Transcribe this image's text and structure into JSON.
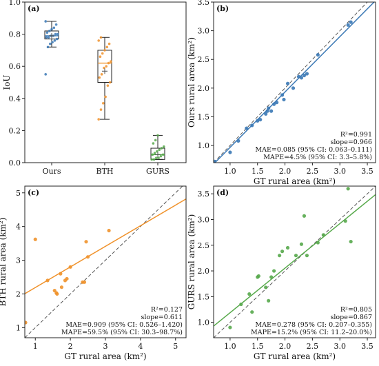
{
  "chart_data": [
    {
      "panel_label": "(a)",
      "type": "box",
      "ylabel": "IoU",
      "ylim": [
        0,
        1.0
      ],
      "yticks": [
        "0.0",
        "0.2",
        "0.4",
        "0.6",
        "0.8",
        "1.0"
      ],
      "categories": [
        "Ours",
        "BTH",
        "GURS"
      ],
      "colors": [
        "#3a78b5",
        "#f0922b",
        "#57a94b"
      ],
      "boxes": [
        {
          "category": "Ours",
          "whisker_low": 0.72,
          "q1": 0.77,
          "median": 0.79,
          "mean": 0.79,
          "q3": 0.82,
          "whisker_high": 0.88,
          "points": [
            0.55,
            0.72,
            0.74,
            0.75,
            0.76,
            0.77,
            0.78,
            0.78,
            0.79,
            0.79,
            0.8,
            0.8,
            0.81,
            0.82,
            0.83,
            0.84,
            0.86,
            0.88
          ]
        },
        {
          "category": "BTH",
          "whisker_low": 0.27,
          "q1": 0.5,
          "median": 0.62,
          "mean": 0.57,
          "q3": 0.7,
          "whisker_high": 0.78,
          "points": [
            0.27,
            0.33,
            0.37,
            0.41,
            0.48,
            0.5,
            0.53,
            0.55,
            0.59,
            0.6,
            0.62,
            0.63,
            0.66,
            0.68,
            0.7,
            0.72,
            0.74,
            0.76,
            0.78
          ]
        },
        {
          "category": "GURS",
          "whisker_low": 0.02,
          "q1": 0.02,
          "median": 0.05,
          "mean": 0.05,
          "q3": 0.09,
          "whisker_high": 0.17,
          "points": [
            0.02,
            0.02,
            0.03,
            0.03,
            0.04,
            0.05,
            0.05,
            0.06,
            0.07,
            0.08,
            0.09,
            0.1,
            0.12,
            0.14,
            0.17
          ]
        }
      ]
    },
    {
      "panel_label": "(b)",
      "type": "scatter",
      "xlabel": "GT rural area (km²)",
      "ylabel": "Ours rural area (km²)",
      "xlim": [
        0.7,
        3.65
      ],
      "ylim": [
        0.7,
        3.5
      ],
      "xticks": [
        "1.0",
        "1.5",
        "2.0",
        "2.5",
        "3.0",
        "3.5"
      ],
      "yticks": [
        "1.0",
        "1.5",
        "2.0",
        "2.5",
        "3.0",
        "3.5"
      ],
      "color": "#3a78b5",
      "fit_line": {
        "slope": 0.966,
        "intercept": 0.0
      },
      "points": [
        [
          0.72,
          0.72
        ],
        [
          1.0,
          0.88
        ],
        [
          1.15,
          1.08
        ],
        [
          1.3,
          1.3
        ],
        [
          1.4,
          1.35
        ],
        [
          1.5,
          1.43
        ],
        [
          1.55,
          1.45
        ],
        [
          1.65,
          1.55
        ],
        [
          1.68,
          1.6
        ],
        [
          1.7,
          1.65
        ],
        [
          1.75,
          1.6
        ],
        [
          1.8,
          1.72
        ],
        [
          1.85,
          1.75
        ],
        [
          1.95,
          1.88
        ],
        [
          1.98,
          1.8
        ],
        [
          2.05,
          2.08
        ],
        [
          2.15,
          2.0
        ],
        [
          2.25,
          2.2
        ],
        [
          2.3,
          2.18
        ],
        [
          2.35,
          2.22
        ],
        [
          2.4,
          2.25
        ],
        [
          2.6,
          2.58
        ],
        [
          3.15,
          3.1
        ],
        [
          3.2,
          3.15
        ]
      ],
      "stats": [
        "R²=0.991",
        "slope=0.966",
        "MAE=0.085 (95% CI: 0.063–0.111)",
        "MAPE=4.5% (95% CI: 3.3–5.8%)"
      ]
    },
    {
      "panel_label": "(c)",
      "type": "scatter",
      "xlabel": "GT rural area (km²)",
      "ylabel": "BTH rural area (km²)",
      "xlim": [
        0.7,
        5.3
      ],
      "ylim": [
        0.7,
        5.2
      ],
      "xticks": [
        "1",
        "2",
        "3",
        "4",
        "5"
      ],
      "yticks": [
        "1",
        "2",
        "3",
        "4",
        "5"
      ],
      "color": "#f0922b",
      "fit_line": {
        "slope": 0.611,
        "intercept": 1.58
      },
      "points": [
        [
          0.72,
          1.15
        ],
        [
          1.0,
          3.62
        ],
        [
          1.35,
          2.4
        ],
        [
          1.55,
          2.1
        ],
        [
          1.6,
          2.03
        ],
        [
          1.62,
          2.0
        ],
        [
          1.72,
          2.6
        ],
        [
          1.75,
          2.2
        ],
        [
          1.85,
          2.4
        ],
        [
          1.9,
          2.45
        ],
        [
          2.0,
          2.8
        ],
        [
          2.35,
          2.35
        ],
        [
          2.4,
          2.35
        ],
        [
          2.45,
          3.55
        ],
        [
          2.5,
          3.1
        ],
        [
          3.1,
          3.88
        ]
      ],
      "stats": [
        "R²=0.127",
        "slope=0.611",
        "MAE=0.909 (95% CI: 0.526–1.420)",
        "MAPE=59.5% (95% CI: 30.3–98.7%)"
      ]
    },
    {
      "panel_label": "(d)",
      "type": "scatter",
      "xlabel": "GT rural area (km²)",
      "ylabel": "GURS rural area (km²)",
      "xlim": [
        0.7,
        3.65
      ],
      "ylim": [
        0.7,
        3.65
      ],
      "xticks": [
        "1.0",
        "1.5",
        "2.0",
        "2.5",
        "3.0",
        "3.5"
      ],
      "yticks": [
        "1.0",
        "1.5",
        "2.0",
        "2.5",
        "3.0",
        "3.5"
      ],
      "color": "#57a94b",
      "fit_line": {
        "slope": 0.867,
        "intercept": 0.32
      },
      "points": [
        [
          1.0,
          0.9
        ],
        [
          1.2,
          1.35
        ],
        [
          1.35,
          1.55
        ],
        [
          1.4,
          1.2
        ],
        [
          1.5,
          1.88
        ],
        [
          1.52,
          1.9
        ],
        [
          1.65,
          1.68
        ],
        [
          1.7,
          1.42
        ],
        [
          1.75,
          1.88
        ],
        [
          1.8,
          2.0
        ],
        [
          1.9,
          2.3
        ],
        [
          1.95,
          2.38
        ],
        [
          2.05,
          2.45
        ],
        [
          2.2,
          2.3
        ],
        [
          2.3,
          2.52
        ],
        [
          2.35,
          3.07
        ],
        [
          2.4,
          2.3
        ],
        [
          2.6,
          2.55
        ],
        [
          2.7,
          2.7
        ],
        [
          3.1,
          2.97
        ],
        [
          3.15,
          3.6
        ],
        [
          3.2,
          2.57
        ]
      ],
      "stats": [
        "R²=0.805",
        "slope=0.867",
        "MAE=0.278 (95% CI: 0.207–0.355)",
        "MAPE=15.2% (95% CI: 11.2–20.0%)"
      ]
    }
  ]
}
